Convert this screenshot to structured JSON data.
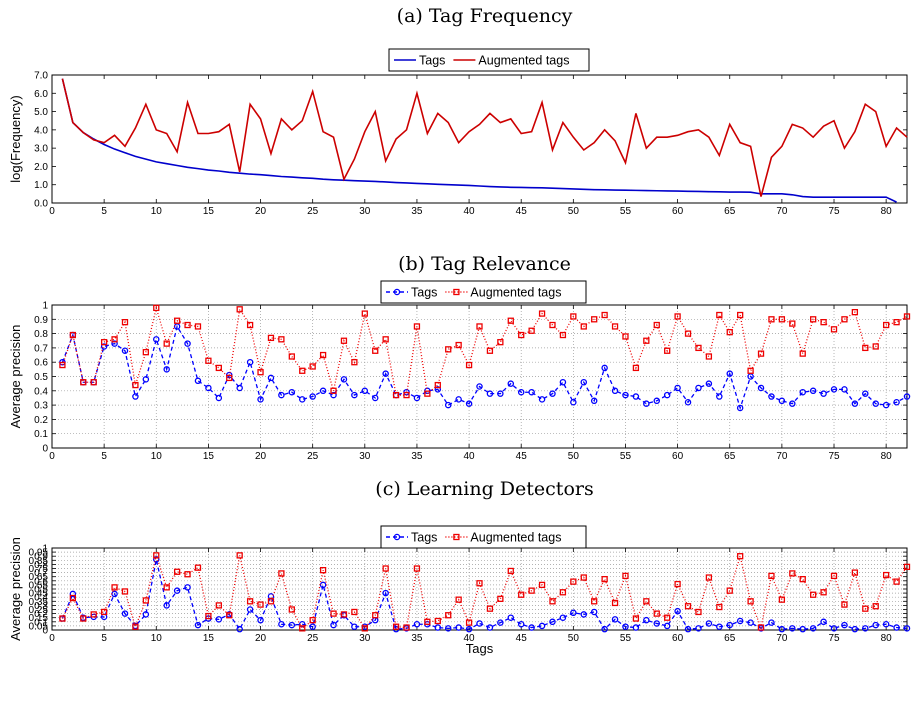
{
  "chart_data": [
    {
      "type": "line",
      "title": "(a) Tag Frequency",
      "xlabel": "",
      "ylabel": "log(Frequency)",
      "xlim": [
        0,
        82
      ],
      "ylim": [
        0,
        7
      ],
      "xticks": [
        0,
        5,
        10,
        15,
        20,
        25,
        30,
        35,
        40,
        45,
        50,
        55,
        60,
        65,
        70,
        75,
        80
      ],
      "yticks": [
        0,
        1,
        2,
        3,
        4,
        5,
        6,
        7
      ],
      "ytick_labels": [
        "0.0",
        "1.0",
        "2.0",
        "3.0",
        "4.0",
        "5.0",
        "6.0",
        "7.0"
      ],
      "grid": false,
      "legend": "top-center",
      "series": [
        {
          "name": "Tags",
          "color": "#0000cc",
          "style": "solid",
          "values": [
            6.8,
            4.4,
            3.85,
            3.5,
            3.2,
            2.95,
            2.75,
            2.55,
            2.4,
            2.25,
            2.15,
            2.05,
            1.95,
            1.88,
            1.8,
            1.75,
            1.68,
            1.63,
            1.58,
            1.55,
            1.5,
            1.45,
            1.42,
            1.38,
            1.35,
            1.3,
            1.27,
            1.25,
            1.22,
            1.2,
            1.18,
            1.15,
            1.12,
            1.1,
            1.07,
            1.05,
            1.02,
            1.0,
            0.98,
            0.96,
            0.93,
            0.9,
            0.88,
            0.86,
            0.85,
            0.84,
            0.83,
            0.81,
            0.79,
            0.77,
            0.75,
            0.73,
            0.72,
            0.71,
            0.7,
            0.69,
            0.68,
            0.67,
            0.66,
            0.65,
            0.64,
            0.63,
            0.62,
            0.61,
            0.6,
            0.6,
            0.59,
            0.5,
            0.5,
            0.5,
            0.45,
            0.35,
            0.32,
            0.32,
            0.32,
            0.32,
            0.32,
            0.32,
            0.32,
            0.32,
            0.05
          ]
        },
        {
          "name": "Augmented tags",
          "color": "#cc0000",
          "style": "solid",
          "values": [
            6.8,
            4.4,
            3.85,
            3.45,
            3.3,
            3.7,
            3.1,
            4.1,
            5.4,
            4.0,
            3.8,
            2.8,
            5.5,
            3.8,
            3.8,
            3.9,
            4.3,
            1.7,
            5.4,
            4.6,
            2.7,
            4.6,
            4.0,
            4.5,
            6.1,
            3.9,
            3.6,
            1.3,
            2.4,
            3.9,
            5.0,
            2.3,
            3.5,
            4.0,
            6.0,
            3.8,
            4.9,
            4.4,
            3.3,
            3.9,
            4.3,
            4.9,
            4.4,
            4.6,
            3.8,
            3.9,
            5.5,
            2.9,
            4.4,
            3.6,
            2.9,
            3.3,
            4.0,
            3.4,
            2.2,
            4.9,
            3.0,
            3.6,
            3.6,
            3.7,
            3.9,
            4.0,
            3.6,
            2.6,
            4.3,
            3.3,
            3.1,
            0.35,
            2.5,
            3.1,
            4.3,
            4.1,
            3.6,
            4.2,
            4.5,
            3.0,
            3.9,
            5.4,
            5.0,
            3.1,
            4.1,
            3.6
          ]
        }
      ]
    },
    {
      "type": "line",
      "title": "(b) Tag Relevance",
      "xlabel": "",
      "ylabel": "Average precision",
      "xlim": [
        0,
        82
      ],
      "ylim": [
        0,
        1
      ],
      "xticks": [
        0,
        5,
        10,
        15,
        20,
        25,
        30,
        35,
        40,
        45,
        50,
        55,
        60,
        65,
        70,
        75,
        80
      ],
      "yticks": [
        0,
        0.1,
        0.2,
        0.3,
        0.4,
        0.5,
        0.6,
        0.7,
        0.8,
        0.9,
        1
      ],
      "ytick_labels": [
        "0",
        "0.1",
        "0.2",
        "0.3",
        "0.4",
        "0.5",
        "0.6",
        "0.7",
        "0.8",
        "0.9",
        "1"
      ],
      "grid": true,
      "legend": "top-center",
      "series": [
        {
          "name": "Tags",
          "color": "#0000ff",
          "style": "dashed",
          "marker": "circle",
          "values": [
            0.6,
            0.79,
            0.46,
            0.46,
            0.71,
            0.73,
            0.68,
            0.36,
            0.48,
            0.76,
            0.55,
            0.85,
            0.73,
            0.47,
            0.42,
            0.35,
            0.51,
            0.42,
            0.6,
            0.34,
            0.49,
            0.37,
            0.39,
            0.34,
            0.36,
            0.4,
            0.37,
            0.48,
            0.37,
            0.4,
            0.35,
            0.52,
            0.37,
            0.39,
            0.35,
            0.4,
            0.41,
            0.3,
            0.34,
            0.31,
            0.43,
            0.38,
            0.38,
            0.45,
            0.39,
            0.39,
            0.34,
            0.38,
            0.46,
            0.32,
            0.46,
            0.33,
            0.56,
            0.4,
            0.37,
            0.36,
            0.31,
            0.33,
            0.37,
            0.42,
            0.32,
            0.42,
            0.45,
            0.36,
            0.52,
            0.28,
            0.5,
            0.42,
            0.36,
            0.33,
            0.31,
            0.39,
            0.4,
            0.38,
            0.41,
            0.41,
            0.31,
            0.38,
            0.31,
            0.3,
            0.32,
            0.36
          ]
        },
        {
          "name": "Augmented tags",
          "color": "#ee0000",
          "style": "dotted",
          "marker": "square",
          "values": [
            0.58,
            0.79,
            0.46,
            0.46,
            0.74,
            0.76,
            0.88,
            0.44,
            0.67,
            0.98,
            0.73,
            0.89,
            0.86,
            0.85,
            0.61,
            0.56,
            0.49,
            0.97,
            0.86,
            0.53,
            0.77,
            0.76,
            0.64,
            0.54,
            0.57,
            0.65,
            0.4,
            0.75,
            0.6,
            0.94,
            0.68,
            0.76,
            0.37,
            0.37,
            0.85,
            0.38,
            0.44,
            0.69,
            0.72,
            0.58,
            0.85,
            0.68,
            0.74,
            0.89,
            0.79,
            0.82,
            0.94,
            0.86,
            0.79,
            0.92,
            0.85,
            0.9,
            0.93,
            0.85,
            0.78,
            0.56,
            0.75,
            0.86,
            0.68,
            0.92,
            0.8,
            0.7,
            0.64,
            0.93,
            0.81,
            0.93,
            0.54,
            0.66,
            0.9,
            0.9,
            0.87,
            0.66,
            0.9,
            0.88,
            0.83,
            0.9,
            0.95,
            0.7,
            0.71,
            0.86,
            0.88,
            0.92
          ]
        }
      ]
    },
    {
      "type": "line",
      "title": "(c) Learning Detectors",
      "xlabel": "Tags",
      "ylabel": "Average precision",
      "xlim": [
        0,
        82
      ],
      "ylim": [
        0,
        1
      ],
      "xticks": [
        0,
        5,
        10,
        15,
        20,
        25,
        30,
        35,
        40,
        45,
        50,
        55,
        60,
        65,
        70,
        75,
        80
      ],
      "yticks": [
        0,
        0.05,
        0.1,
        0.15,
        0.2,
        0.25,
        0.3,
        0.35,
        0.4,
        0.45,
        0.5,
        0.55,
        0.6,
        0.65,
        0.7,
        0.75,
        0.8,
        0.85,
        0.9,
        0.95,
        1
      ],
      "ytick_labels": [
        "0",
        "0.05",
        "0.1",
        "0.15",
        "0.2",
        "0.25",
        "0.3",
        "0.35",
        "0.4",
        "0.45",
        "0.5",
        "0.55",
        "0.6",
        "0.65",
        "0.7",
        "0.75",
        "0.8",
        "0.85",
        "0.9",
        "0.95",
        "1"
      ],
      "grid": true,
      "legend": "top-center",
      "series": [
        {
          "name": "Tags",
          "color": "#0000ff",
          "style": "dashed",
          "marker": "circle",
          "values": [
            0.14,
            0.44,
            0.15,
            0.16,
            0.16,
            0.44,
            0.2,
            0.05,
            0.19,
            0.86,
            0.3,
            0.48,
            0.52,
            0.06,
            0.14,
            0.13,
            0.19,
            0.01,
            0.25,
            0.12,
            0.41,
            0.07,
            0.06,
            0.07,
            0.04,
            0.55,
            0.06,
            0.18,
            0.04,
            0.04,
            0.12,
            0.45,
            0.01,
            0.02,
            0.07,
            0.07,
            0.03,
            0.02,
            0.03,
            0.01,
            0.08,
            0.03,
            0.09,
            0.15,
            0.07,
            0.03,
            0.05,
            0.1,
            0.15,
            0.21,
            0.19,
            0.22,
            0.01,
            0.13,
            0.04,
            0.03,
            0.12,
            0.08,
            0.05,
            0.23,
            0.01,
            0.02,
            0.08,
            0.04,
            0.06,
            0.11,
            0.09,
            0.02,
            0.09,
            0.01,
            0.02,
            0.01,
            0.02,
            0.1,
            0.02,
            0.06,
            0.01,
            0.02,
            0.06,
            0.07,
            0.03,
            0.02
          ]
        },
        {
          "name": "Augmented tags",
          "color": "#ee0000",
          "style": "dotted",
          "marker": "square",
          "values": [
            0.14,
            0.39,
            0.14,
            0.19,
            0.22,
            0.52,
            0.47,
            0.04,
            0.36,
            0.91,
            0.52,
            0.71,
            0.68,
            0.76,
            0.17,
            0.3,
            0.18,
            0.91,
            0.35,
            0.31,
            0.35,
            0.69,
            0.25,
            0.02,
            0.12,
            0.73,
            0.2,
            0.19,
            0.22,
            0.02,
            0.18,
            0.75,
            0.04,
            0.03,
            0.75,
            0.1,
            0.11,
            0.18,
            0.37,
            0.09,
            0.57,
            0.26,
            0.38,
            0.72,
            0.43,
            0.48,
            0.55,
            0.35,
            0.46,
            0.59,
            0.64,
            0.35,
            0.62,
            0.33,
            0.66,
            0.14,
            0.35,
            0.2,
            0.15,
            0.56,
            0.29,
            0.22,
            0.64,
            0.28,
            0.48,
            0.9,
            0.35,
            0.03,
            0.66,
            0.37,
            0.69,
            0.62,
            0.43,
            0.46,
            0.66,
            0.31,
            0.7,
            0.26,
            0.29,
            0.67,
            0.59,
            0.77
          ]
        }
      ]
    }
  ]
}
